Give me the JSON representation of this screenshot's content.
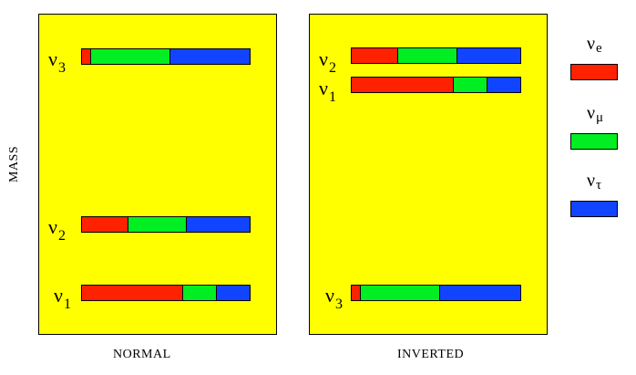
{
  "colors": {
    "nu_e": "#ff2200",
    "nu_mu": "#00ee22",
    "nu_tau": "#1144ff",
    "panel": "#ffff00"
  },
  "axis": {
    "mass_label": "MASS"
  },
  "panels": {
    "normal": {
      "label": "NORMAL",
      "rows": [
        {
          "symbol": "ν",
          "index": "3",
          "fractions": [
            0.05,
            0.47,
            0.48
          ]
        },
        {
          "symbol": "ν",
          "index": "2",
          "fractions": [
            0.27,
            0.35,
            0.38
          ]
        },
        {
          "symbol": "ν",
          "index": "1",
          "fractions": [
            0.6,
            0.2,
            0.2
          ]
        }
      ]
    },
    "inverted": {
      "label": "INVERTED",
      "rows": [
        {
          "symbol": "ν",
          "index": "2",
          "fractions": [
            0.27,
            0.35,
            0.38
          ]
        },
        {
          "symbol": "ν",
          "index": "1",
          "fractions": [
            0.6,
            0.2,
            0.2
          ]
        },
        {
          "symbol": "ν",
          "index": "3",
          "fractions": [
            0.05,
            0.47,
            0.48
          ]
        }
      ]
    }
  },
  "legend": [
    {
      "symbol": "ν",
      "index": "e"
    },
    {
      "symbol": "ν",
      "index": "μ"
    },
    {
      "symbol": "ν",
      "index": "τ"
    }
  ]
}
